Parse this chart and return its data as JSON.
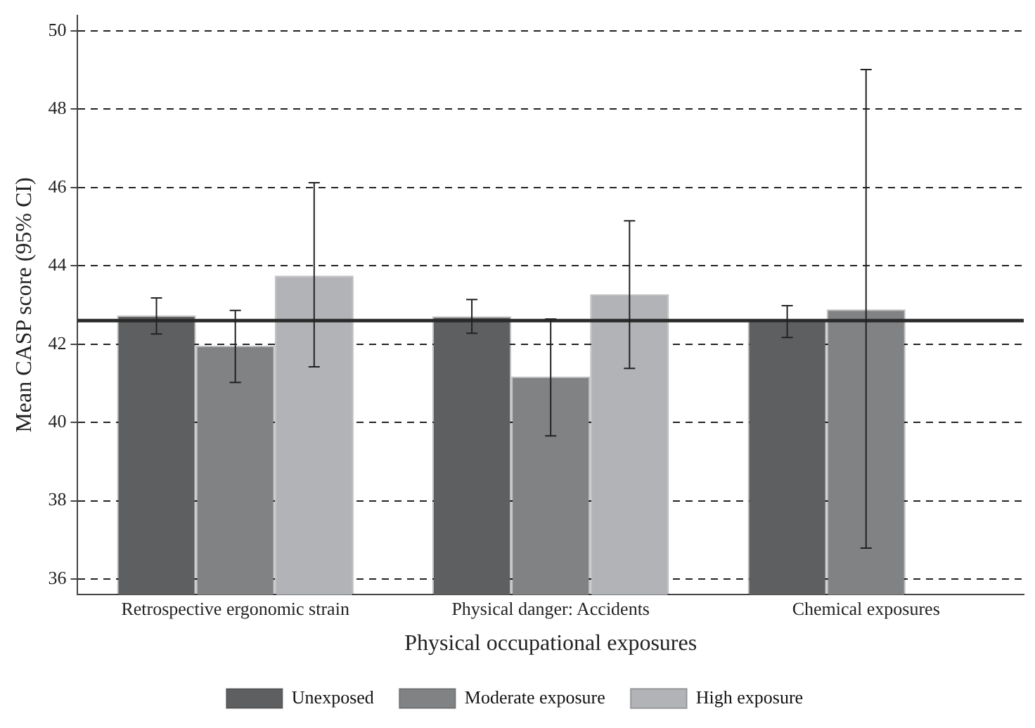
{
  "chart_data": {
    "type": "bar",
    "xlabel": "Physical occupational exposures",
    "ylabel": "Mean CASP score (95% CI)",
    "categories": [
      "Retrospective ergonomic strain",
      "Physical danger: Accidents",
      "Chemical exposures"
    ],
    "series": [
      {
        "name": "Unexposed",
        "color": "#5e5f61",
        "values": [
          42.73,
          42.71,
          42.6
        ],
        "errors": [
          [
            42.26,
            43.18
          ],
          [
            42.28,
            43.14
          ],
          [
            42.17,
            42.98
          ]
        ]
      },
      {
        "name": "Moderate exposure",
        "color": "#818284",
        "values": [
          41.96,
          41.17,
          42.89
        ],
        "errors": [
          [
            41.02,
            42.86
          ],
          [
            39.66,
            42.64
          ],
          [
            36.79,
            49.01
          ]
        ]
      },
      {
        "name": "High exposure",
        "color": "#b2b3b6",
        "values": [
          43.75,
          43.27,
          null
        ],
        "errors": [
          [
            41.42,
            46.12
          ],
          [
            41.38,
            45.15
          ],
          null
        ]
      }
    ],
    "ylim": [
      35.6,
      50.4
    ],
    "yticks": [
      36,
      38,
      40,
      42,
      44,
      46,
      48,
      50
    ],
    "ref_lines": [
      {
        "axis": "y",
        "value": 42.6,
        "color": "#2a2a2a"
      }
    ],
    "grid": "y",
    "legend": "bottom",
    "line_style": "dashed"
  }
}
